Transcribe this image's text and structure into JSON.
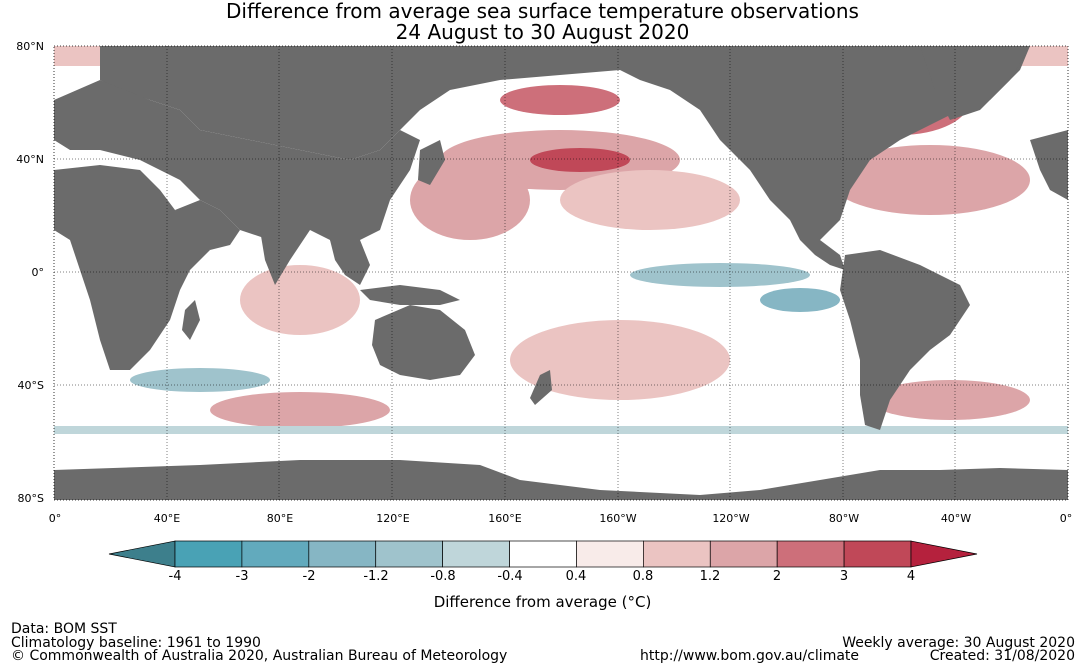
{
  "title_line1": "Difference from average sea surface temperature observations",
  "title_line2": "24 August to 30 August 2020",
  "lat_labels": [
    "80°N",
    "40°N",
    "0°",
    "40°S",
    "80°S"
  ],
  "lon_labels": [
    "0°",
    "40°E",
    "80°E",
    "120°E",
    "160°E",
    "160°W",
    "120°W",
    "80°W",
    "40°W",
    "0°"
  ],
  "colorbar": {
    "title": "Difference from average (°C)",
    "tick_labels": [
      "-4",
      "-3",
      "-2",
      "-1.2",
      "-0.8",
      "-0.4",
      "0.4",
      "0.8",
      "1.2",
      "2",
      "3",
      "4"
    ],
    "colors": [
      "#3d7f8c",
      "#49a2b5",
      "#62aabd",
      "#86b6c4",
      "#9fc3cc",
      "#bfd6da",
      "#ffffff",
      "#f8ebe9",
      "#ebc4c2",
      "#dca5a8",
      "#cd6f7a",
      "#c04858",
      "#b5213d"
    ]
  },
  "land_color": "#6b6b6b",
  "footer": {
    "data_source": "Data: BOM SST",
    "baseline": "Climatology baseline: 1961 to 1990",
    "copyright": "© Commonwealth of Australia 2020, Australian Bureau of Meteorology",
    "weekly_average": "Weekly average: 30 August 2020",
    "url": "http://www.bom.gov.au/climate",
    "created": "Created: 31/08/2020"
  }
}
